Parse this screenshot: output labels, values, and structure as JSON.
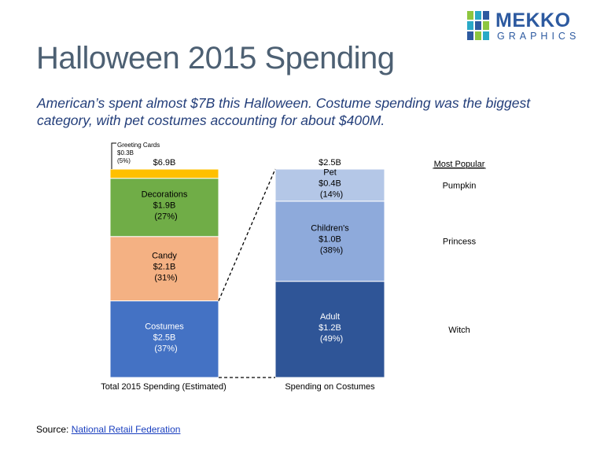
{
  "header": {
    "title": "Halloween 2015 Spending",
    "subtitle": "American’s spent almost $7B this Halloween.  Costume spending was the biggest category, with pet costumes accounting for about $400M."
  },
  "logo": {
    "word": "MEKKO",
    "sub": "GRAPHICS",
    "colors": [
      "#8dc63f",
      "#29a9c7",
      "#2d5aa0"
    ]
  },
  "footer": {
    "source_label": "Source: ",
    "source_link": "National Retail Federation"
  },
  "chart_data": [
    {
      "type": "bar",
      "stacked": true,
      "xlabel": "Total 2015 Spending (Estimated)",
      "total_label": "$6.9B",
      "unit": "$B",
      "segments": [
        {
          "name": "Costumes",
          "value": 2.5,
          "value_label": "$2.5B",
          "pct_label": "(37%)",
          "color": "#4472c4"
        },
        {
          "name": "Candy",
          "value": 2.1,
          "value_label": "$2.1B",
          "pct_label": "(31%)",
          "color": "#f4b183"
        },
        {
          "name": "Decorations",
          "value": 1.9,
          "value_label": "$1.9B",
          "pct_label": "(27%)",
          "color": "#70ad47"
        },
        {
          "name": "Greeting Cards",
          "value": 0.3,
          "value_label": "$0.3B",
          "pct_label": "(5%)",
          "color": "#ffc000"
        }
      ]
    },
    {
      "type": "bar",
      "stacked": true,
      "xlabel": "Spending on Costumes",
      "total_label": "$2.5B",
      "unit": "$B",
      "segments": [
        {
          "name": "Adult",
          "value": 1.2,
          "value_label": "$1.2B",
          "pct_label": "(49%)",
          "color": "#2f5597",
          "most_popular": "Witch"
        },
        {
          "name": "Children's",
          "value": 1.0,
          "value_label": "$1.0B",
          "pct_label": "(38%)",
          "color": "#8eaadb",
          "most_popular": "Princess"
        },
        {
          "name": "Pet",
          "value": 0.4,
          "value_label": "$0.4B",
          "pct_label": "(14%)",
          "color": "#b4c7e7",
          "most_popular": "Pumpkin"
        }
      ]
    }
  ],
  "most_popular_header": "Most Popular"
}
